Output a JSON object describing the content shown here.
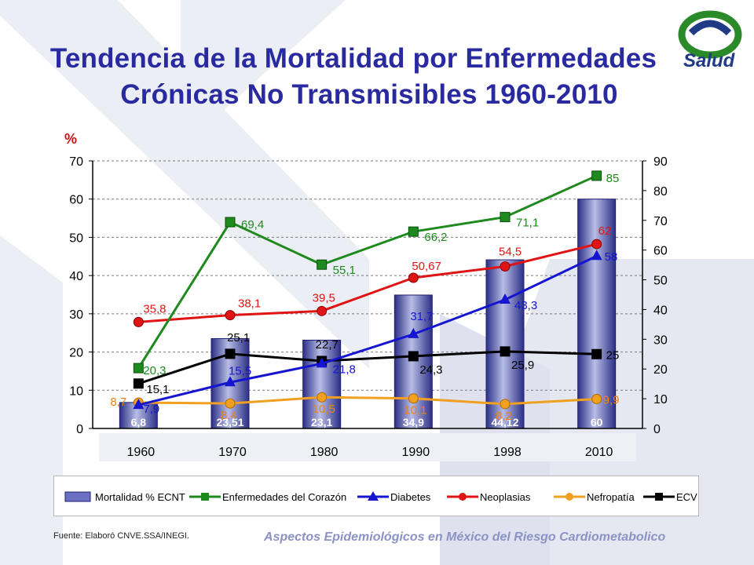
{
  "title_line1": "Tendencia de la Mortalidad por Enfermedades",
  "title_line2": "Crónicas No Transmisibles 1960-2010",
  "logo_text": "Salud",
  "source": "Fuente: Elaboró CNVE.SSA/INEGI.",
  "footer_right": "Aspectos Epidemiológicos en México del Riesgo Cardiometabolico",
  "colors": {
    "title": "#2a2aa0",
    "bar": "#3b3f98",
    "heart": "#1e8a1e",
    "diabetes": "#1515d0",
    "neoplasias": "#e01414",
    "nefropatia": "#f0a020",
    "ecv": "#000000",
    "green_axis": "#2e8b2e"
  },
  "chart_data": {
    "type": "bar+line",
    "left_axis_label": "%",
    "categories": [
      "1960",
      "1970",
      "1980",
      "1990",
      "1998",
      "2010"
    ],
    "left_ylim": [
      0,
      70
    ],
    "left_ticks": [
      "0",
      "10",
      "20",
      "30",
      "40",
      "50",
      "60",
      "70"
    ],
    "right_ylim": [
      0,
      90
    ],
    "right_ticks": [
      "0",
      "10",
      "20",
      "30",
      "40",
      "50",
      "60",
      "70",
      "80",
      "90"
    ],
    "grid": true,
    "bars": {
      "name": "Mortalidad % ECNT",
      "axis": "left",
      "values": [
        6.8,
        23.51,
        23.1,
        34.9,
        44.12,
        60
      ],
      "labels": [
        "6,8",
        "23,51",
        "23,1",
        "34,9",
        "44,12",
        "60"
      ]
    },
    "series": [
      {
        "key": "heart",
        "name": "Enfermedades del Corazón",
        "axis": "right",
        "marker": "square",
        "values": [
          20.3,
          69.4,
          55.1,
          66.2,
          71.1,
          85
        ],
        "labels": [
          "20,3",
          "69,4",
          "55,1",
          "66,2",
          "71,1",
          "85"
        ]
      },
      {
        "key": "diabetes",
        "name": "Diabetes",
        "axis": "right",
        "marker": "triangle",
        "values": [
          7.9,
          15.5,
          21.8,
          31.7,
          43.3,
          58
        ],
        "labels": [
          "7,9",
          "15,5",
          "21,8",
          "31,7",
          "43,3",
          "58"
        ]
      },
      {
        "key": "neoplasias",
        "name": "Neoplasias",
        "axis": "right",
        "marker": "circle",
        "values": [
          35.8,
          38.1,
          39.5,
          50.67,
          54.5,
          62
        ],
        "labels": [
          "35,8",
          "38,1",
          "39,5",
          "50,67",
          "54,5",
          "62"
        ]
      },
      {
        "key": "nefropatia",
        "name": "Nefropatía",
        "axis": "right",
        "marker": "circle",
        "values": [
          8.7,
          8.4,
          10.5,
          10.1,
          8.2,
          9.9
        ],
        "labels": [
          "8,7",
          "8,4",
          "10,5",
          "10,1",
          "8,2",
          "9,9"
        ]
      },
      {
        "key": "ecv",
        "name": "ECV",
        "axis": "right",
        "marker": "square",
        "values": [
          15.1,
          25.1,
          22.7,
          24.3,
          25.9,
          25
        ],
        "labels": [
          "15,1",
          "25,1",
          "22,7",
          "24,3",
          "25,9",
          "25"
        ]
      }
    ]
  }
}
